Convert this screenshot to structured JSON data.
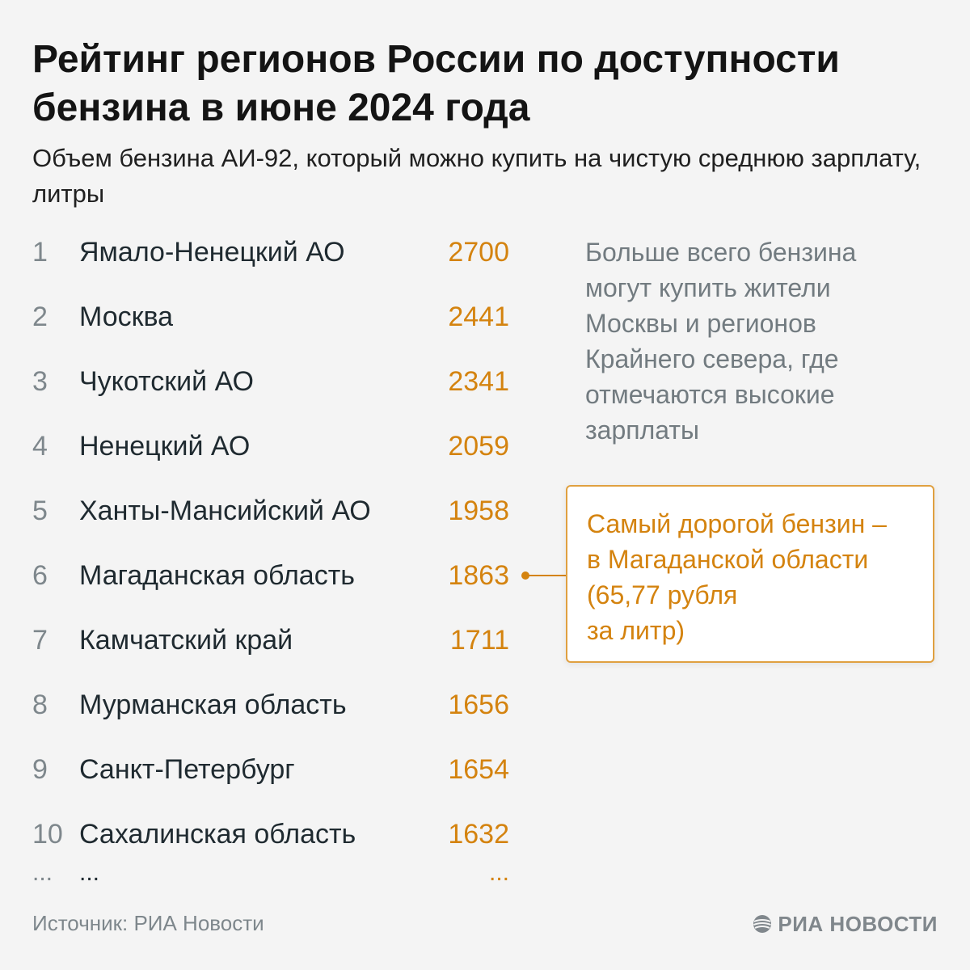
{
  "title": "Рейтинг регионов России по доступности бензина в июне 2024 года",
  "subtitle": "Объем бензина АИ-92, который можно купить на чистую среднюю зарплату, литры",
  "chart_data": {
    "type": "table",
    "title": "Рейтинг регионов России по доступности бензина в июне 2024 года",
    "subtitle": "Объем бензина АИ-92, который можно купить на чистую среднюю зарплату, литры",
    "rows": [
      {
        "rank": "1",
        "region": "Ямало-Ненецкий АО",
        "value": "2700"
      },
      {
        "rank": "2",
        "region": "Москва",
        "value": "2441"
      },
      {
        "rank": "3",
        "region": "Чукотский АО",
        "value": "2341"
      },
      {
        "rank": "4",
        "region": "Ненецкий АО",
        "value": "2059"
      },
      {
        "rank": "5",
        "region": "Ханты-Мансийский АО",
        "value": "1958"
      },
      {
        "rank": "6",
        "region": "Магаданская область",
        "value": "1863"
      },
      {
        "rank": "7",
        "region": "Камчатский край",
        "value": "1711"
      },
      {
        "rank": "8",
        "region": "Мурманская область",
        "value": "1656"
      },
      {
        "rank": "9",
        "region": "Санкт-Петербург",
        "value": "1654"
      },
      {
        "rank": "10",
        "region": "Сахалинская область",
        "value": "1632"
      }
    ],
    "continuation": {
      "rank": "...",
      "region": "...",
      "value": "..."
    },
    "annotations": [
      "Больше всего бензина могут купить жители Москвы и регионов Крайнего севера, где отмечаются высокие зарплаты",
      "Самый дорогой бензин –\nв Магаданской области\n(65,77 рубля\nза литр)"
    ],
    "callout_target_rank": "6",
    "colors": {
      "value": "#d4830f",
      "rank": "#7e878c",
      "note": "#727b80"
    }
  },
  "note": "Больше всего бензина могут купить жители Москвы и регионов Крайнего севера, где отмечаются высокие зарплаты",
  "callout": "Самый дорогой бензин –\nв Магаданской области\n(65,77 рубля\nза литр)",
  "footer": {
    "source": "Источник: РИА Новости",
    "logo_text": "РИА НОВОСТИ",
    "logo_icon": "ria-globe-icon"
  }
}
